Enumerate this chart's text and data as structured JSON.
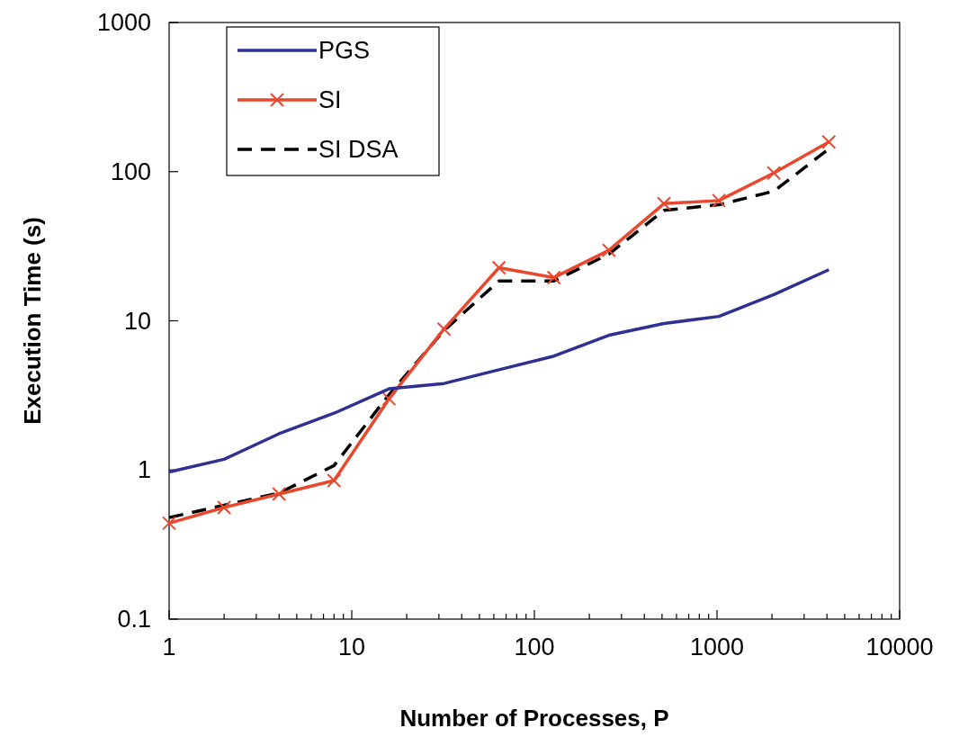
{
  "chart_data": {
    "type": "line",
    "xlabel": "Number of Processes, P",
    "ylabel": "Execution Time (s)",
    "log": "xy",
    "xlim": [
      1,
      10000
    ],
    "ylim": [
      0.1,
      1000
    ],
    "xticks": [
      1,
      {
        "value": 2,
        "label": null
      },
      {
        "value": 3,
        "label": null
      },
      {
        "value": 4,
        "label": null
      },
      {
        "value": 5,
        "label": null
      },
      {
        "value": 6,
        "label": null
      },
      {
        "value": 7,
        "label": null
      },
      {
        "value": 8,
        "label": null
      },
      {
        "value": 9,
        "label": null
      },
      10,
      {
        "value": 20,
        "label": null
      },
      {
        "value": 30,
        "label": null
      },
      {
        "value": 40,
        "label": null
      },
      {
        "value": 50,
        "label": null
      },
      {
        "value": 60,
        "label": null
      },
      {
        "value": 70,
        "label": null
      },
      {
        "value": 80,
        "label": null
      },
      {
        "value": 90,
        "label": null
      },
      100,
      {
        "value": 200,
        "label": null
      },
      {
        "value": 300,
        "label": null
      },
      {
        "value": 400,
        "label": null
      },
      {
        "value": 500,
        "label": null
      },
      {
        "value": 600,
        "label": null
      },
      {
        "value": 700,
        "label": null
      },
      {
        "value": 800,
        "label": null
      },
      {
        "value": 900,
        "label": null
      },
      1000,
      {
        "value": 2000,
        "label": null
      },
      {
        "value": 3000,
        "label": null
      },
      {
        "value": 4000,
        "label": null
      },
      {
        "value": 5000,
        "label": null
      },
      {
        "value": 6000,
        "label": null
      },
      {
        "value": 7000,
        "label": null
      },
      {
        "value": 8000,
        "label": null
      },
      {
        "value": 9000,
        "label": null
      },
      10000
    ],
    "yticks": [
      0.1,
      1,
      10,
      100,
      1000
    ],
    "x": [
      1,
      2,
      4,
      8,
      16,
      32,
      64,
      128,
      256,
      512,
      1024,
      2048,
      4096
    ],
    "legend": "top left",
    "grid": false,
    "series": [
      {
        "name": "PGS",
        "color": "#2e3192",
        "marker": "none",
        "line_style": "solid",
        "values": [
          0.97,
          1.18,
          1.75,
          2.4,
          3.5,
          3.8,
          4.7,
          5.8,
          8,
          9.6,
          10.7,
          15,
          22
        ]
      },
      {
        "name": "SI",
        "color": "#e8492e",
        "marker": "cross",
        "line_style": "solid",
        "values": [
          0.44,
          0.56,
          0.69,
          0.85,
          3.0,
          8.8,
          22.7,
          19.5,
          29.7,
          61,
          64,
          98,
          158
        ]
      },
      {
        "name": "SI DSA",
        "color": "#000000",
        "marker": "none",
        "line_style": "dashed",
        "values": [
          0.48,
          0.58,
          0.7,
          1.07,
          3.2,
          8.6,
          18.5,
          18.5,
          28,
          55,
          60,
          74,
          142
        ]
      }
    ]
  }
}
